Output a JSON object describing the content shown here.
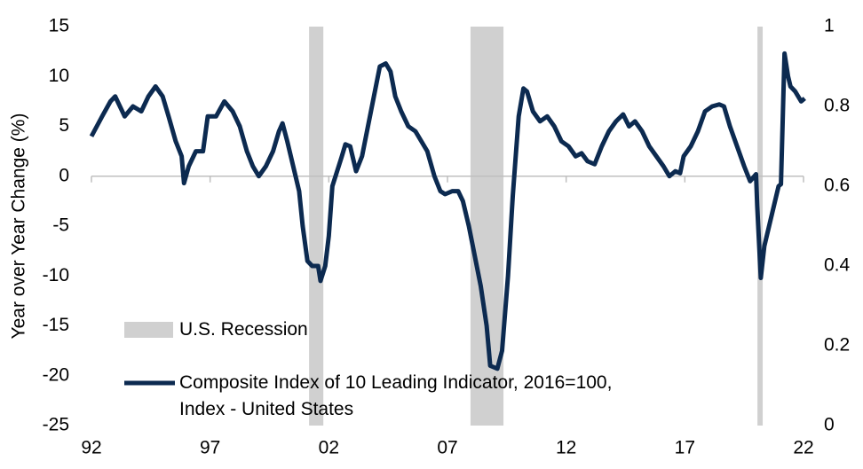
{
  "chart_data": {
    "type": "line",
    "y_label": "Year over Year Change (%)",
    "x": [
      1992.0,
      1992.45,
      1992.8,
      1993.0,
      1993.4,
      1993.75,
      1994.1,
      1994.4,
      1994.7,
      1995.0,
      1995.25,
      1995.55,
      1995.8,
      1995.9,
      1996.1,
      1996.4,
      1996.7,
      1996.9,
      1997.25,
      1997.6,
      1997.95,
      1998.25,
      1998.55,
      1998.8,
      1999.05,
      1999.35,
      1999.65,
      1999.9,
      2000.05,
      2000.25,
      2000.5,
      2000.75,
      2000.9,
      2001.1,
      2001.3,
      2001.55,
      2001.65,
      2001.85,
      2002.0,
      2002.15,
      2002.35,
      2002.55,
      2002.7,
      2002.9,
      2003.15,
      2003.4,
      2003.65,
      2003.9,
      2004.15,
      2004.4,
      2004.6,
      2004.8,
      2005.05,
      2005.35,
      2005.65,
      2005.9,
      2006.15,
      2006.45,
      2006.7,
      2006.9,
      2007.2,
      2007.45,
      2007.65,
      2007.9,
      2008.15,
      2008.4,
      2008.65,
      2008.8,
      2009.1,
      2009.3,
      2009.55,
      2009.75,
      2010.0,
      2010.2,
      2010.35,
      2010.6,
      2010.9,
      2011.2,
      2011.5,
      2011.8,
      2012.1,
      2012.4,
      2012.65,
      2012.9,
      2013.2,
      2013.5,
      2013.8,
      2014.1,
      2014.4,
      2014.65,
      2014.9,
      2015.2,
      2015.5,
      2015.8,
      2016.1,
      2016.35,
      2016.6,
      2016.8,
      2016.95,
      2017.25,
      2017.55,
      2017.85,
      2018.15,
      2018.45,
      2018.65,
      2018.9,
      2019.2,
      2019.5,
      2019.75,
      2020.0,
      2020.05,
      2020.2,
      2020.35,
      2020.55,
      2020.75,
      2020.95,
      2021.05,
      2021.2,
      2021.35,
      2021.45,
      2021.65,
      2021.9,
      2022.05
    ],
    "series": [
      {
        "name": "Composite Index of 10 Leading Indicator, 2016=100, Index - United States",
        "color": "#0c2a50",
        "values": [
          4,
          6,
          7.5,
          8,
          6,
          7,
          6.5,
          8,
          9,
          8,
          6,
          3.5,
          2,
          -0.7,
          1,
          2.5,
          2.5,
          6,
          6,
          7.5,
          6.5,
          5,
          2.5,
          1,
          0,
          1,
          2.5,
          4.5,
          5.3,
          3.5,
          1,
          -1.5,
          -5,
          -8.5,
          -9,
          -9,
          -10.5,
          -9,
          -6,
          -1,
          0.5,
          2,
          3.2,
          3,
          0.5,
          2,
          5,
          8,
          11,
          11.3,
          10.5,
          8,
          6.5,
          5,
          4.5,
          3.5,
          2.5,
          0,
          -1.5,
          -1.8,
          -1.5,
          -1.5,
          -2.5,
          -5,
          -8,
          -11,
          -15,
          -19,
          -19.3,
          -17.5,
          -10,
          -2,
          6,
          8.8,
          8.5,
          6.5,
          5.5,
          6,
          5,
          3.5,
          3,
          2,
          2.3,
          1.5,
          1.2,
          3,
          4.5,
          5.5,
          6.2,
          5,
          5.5,
          4.5,
          3,
          2,
          1,
          0,
          0.5,
          0.3,
          2,
          3,
          4.5,
          6.5,
          7,
          7.2,
          7,
          5,
          3,
          1,
          -0.5,
          0.2,
          -3,
          -10.2,
          -7,
          -5,
          -3,
          -1,
          -0.8,
          12.3,
          10,
          9,
          8.5,
          7.5,
          7.8
        ]
      }
    ],
    "recessions": {
      "name": "U.S. Recession",
      "color": "#d0d0d0",
      "spans": [
        [
          2001.17,
          2001.77
        ],
        [
          2007.97,
          2009.36
        ],
        [
          2020.06,
          2020.28
        ]
      ]
    },
    "xlim": [
      1992,
      2022
    ],
    "xticks": [
      {
        "value": 1992,
        "label": "92"
      },
      {
        "value": 1997,
        "label": "97"
      },
      {
        "value": 2002,
        "label": "02"
      },
      {
        "value": 2007,
        "label": "07"
      },
      {
        "value": 2012,
        "label": "12"
      },
      {
        "value": 2017,
        "label": "17"
      },
      {
        "value": 2022,
        "label": "22"
      }
    ],
    "ylim": [
      -25,
      15
    ],
    "yticks": [
      -25,
      -20,
      -15,
      -10,
      -5,
      0,
      5,
      10,
      15
    ],
    "y2lim": [
      0,
      1
    ],
    "y2ticks": [
      0,
      0.2,
      0.4,
      0.6,
      0.8,
      1
    ]
  }
}
